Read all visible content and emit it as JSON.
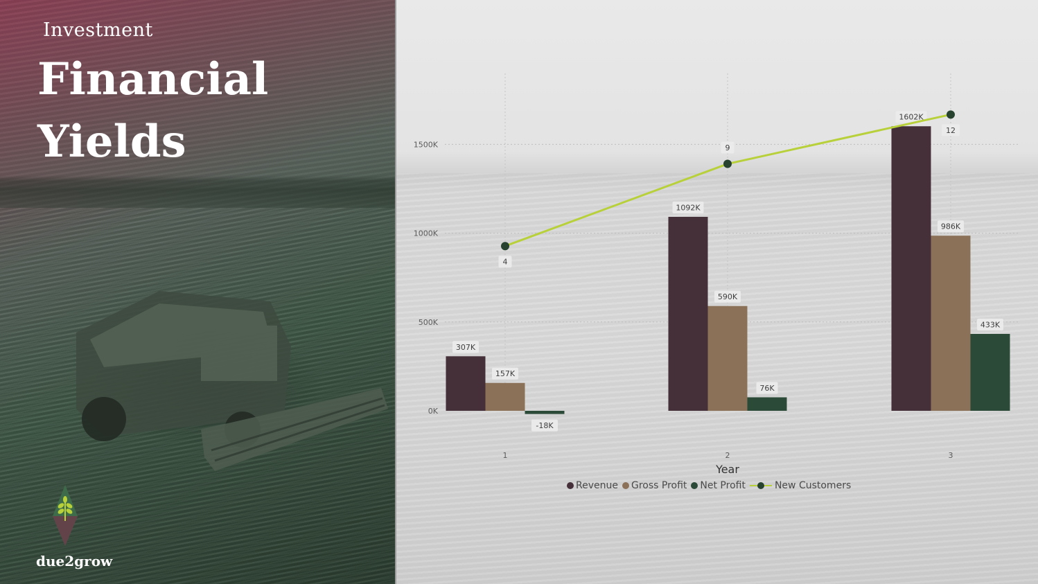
{
  "slide": {
    "subtitle": "Investment",
    "title_line1": "Financial",
    "title_line2": "Yields",
    "brand": "due2grow"
  },
  "colors": {
    "revenue": "#45303a",
    "gross_profit": "#8b7158",
    "net_profit": "#2b4a38",
    "new_customers_line": "#b8d03a",
    "new_customers_marker": "#27432f"
  },
  "chart_data": {
    "type": "bar",
    "xlabel": "Year",
    "categories": [
      "1",
      "2",
      "3"
    ],
    "ylim": [
      -100,
      1900
    ],
    "yticks": [
      0,
      500,
      1000,
      1500
    ],
    "ytick_labels": [
      "0K",
      "500K",
      "1000K",
      "1500K"
    ],
    "grid": true,
    "legend_position": "bottom",
    "series": [
      {
        "name": "Revenue",
        "values": [
          307,
          1092,
          1602
        ],
        "labels": [
          "307K",
          "1092K",
          "1602K"
        ],
        "color": "#45303a"
      },
      {
        "name": "Gross Profit",
        "values": [
          157,
          590,
          986
        ],
        "labels": [
          "157K",
          "590K",
          "986K"
        ],
        "color": "#8b7158"
      },
      {
        "name": "Net Profit",
        "values": [
          -18,
          76,
          433
        ],
        "labels": [
          "-18K",
          "76K",
          "433K"
        ],
        "color": "#2b4a38"
      }
    ],
    "line_series": {
      "name": "New Customers",
      "type": "line",
      "values": [
        4,
        9,
        12
      ],
      "labels": [
        "4",
        "9",
        "12"
      ],
      "y2lim": [
        -8,
        14.5
      ],
      "color": "#b8d03a",
      "marker_color": "#27432f"
    }
  }
}
